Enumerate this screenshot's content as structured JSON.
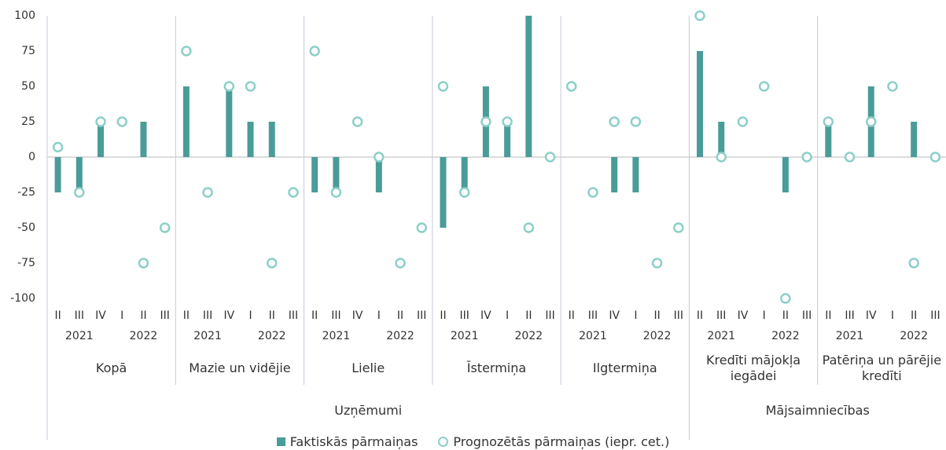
{
  "chart_data": {
    "type": "bar",
    "ylim": [
      -100,
      100
    ],
    "yticks": [
      100,
      75,
      50,
      25,
      0,
      -25,
      -50,
      -75,
      -100
    ],
    "series": [
      {
        "name": "Faktiskās pārmaiņas",
        "color": "#4a9c98",
        "marker": "bar"
      },
      {
        "name": "Prognozētās pārmaiņas (iepr. cet.)",
        "color": "#8ccfca",
        "marker": "circle"
      }
    ],
    "sections": [
      {
        "name": "Uzņēmumi",
        "groups": [
          {
            "name": "Kopā",
            "categories": [
              "II",
              "III",
              "IV",
              "I",
              "II",
              "III"
            ],
            "years": [
              "2021",
              "2022"
            ],
            "values": [
              [
                -25,
                -25,
                25,
                0,
                25,
                0
              ],
              [
                7,
                -25,
                25,
                25,
                -75,
                -50
              ]
            ]
          },
          {
            "name": "Mazie un vidējie",
            "categories": [
              "II",
              "III",
              "IV",
              "I",
              "II",
              "III"
            ],
            "years": [
              "2021",
              "2022"
            ],
            "values": [
              [
                50,
                0,
                50,
                25,
                25,
                0
              ],
              [
                75,
                -25,
                50,
                50,
                -75,
                -25
              ]
            ]
          },
          {
            "name": "Lielie",
            "categories": [
              "II",
              "III",
              "IV",
              "I",
              "II",
              "III"
            ],
            "years": [
              "2021",
              "2022"
            ],
            "values": [
              [
                -25,
                -25,
                0,
                -25,
                0,
                0
              ],
              [
                75,
                -25,
                25,
                0,
                -75,
                -50
              ]
            ]
          },
          {
            "name": "Īstermiņa",
            "categories": [
              "II",
              "III",
              "IV",
              "I",
              "II",
              "III"
            ],
            "years": [
              "2021",
              "2022"
            ],
            "values": [
              [
                -50,
                -25,
                50,
                25,
                100,
                0
              ],
              [
                50,
                -25,
                25,
                25,
                -50,
                0
              ]
            ]
          },
          {
            "name": "Ilgtermiņa",
            "categories": [
              "II",
              "III",
              "IV",
              "I",
              "II",
              "III"
            ],
            "years": [
              "2021",
              "2022"
            ],
            "values": [
              [
                0,
                0,
                -25,
                -25,
                0,
                0
              ],
              [
                50,
                -25,
                25,
                25,
                -75,
                -50
              ]
            ]
          }
        ]
      },
      {
        "name": "Mājsaimniecības",
        "groups": [
          {
            "name": "Kredīti mājokļa iegādei",
            "categories": [
              "II",
              "III",
              "IV",
              "I",
              "II",
              "III"
            ],
            "years": [
              "2021",
              "2022"
            ],
            "values": [
              [
                75,
                25,
                0,
                0,
                -25,
                0
              ],
              [
                100,
                0,
                25,
                50,
                -100,
                0
              ]
            ]
          },
          {
            "name": "Patēriņa un pārējie kredīti",
            "categories": [
              "II",
              "III",
              "IV",
              "I",
              "II",
              "III"
            ],
            "years": [
              "2021",
              "2022"
            ],
            "values": [
              [
                25,
                0,
                50,
                0,
                25,
                0
              ],
              [
                25,
                0,
                25,
                50,
                -75,
                0
              ]
            ]
          }
        ]
      }
    ]
  }
}
